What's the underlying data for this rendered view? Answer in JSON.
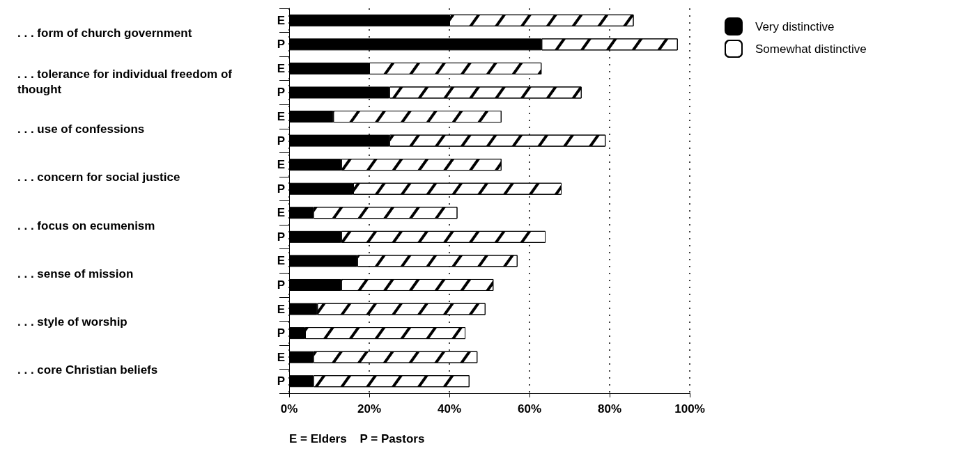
{
  "chart_data": {
    "type": "bar",
    "orientation": "horizontal",
    "stacked": true,
    "categories": [
      "E",
      "P",
      "E",
      "P",
      "E",
      "P",
      "E",
      "P",
      "E",
      "P",
      "E",
      "P",
      "E",
      "P",
      "E",
      "P"
    ],
    "series": [
      {
        "name": "Very distinctive",
        "color": "#000000",
        "values": [
          40,
          63,
          20,
          25,
          11,
          25,
          13,
          16,
          6,
          13,
          17,
          13,
          7,
          4,
          6,
          6
        ]
      },
      {
        "name": "Somewhat distinctive",
        "color": "#ffffff",
        "values": [
          46,
          34,
          43,
          48,
          42,
          54,
          40,
          52,
          36,
          51,
          40,
          38,
          42,
          40,
          41,
          39
        ]
      }
    ],
    "xlim": [
      0,
      100
    ],
    "xticks": [
      {
        "value": 0,
        "label": "0%"
      },
      {
        "value": 20,
        "label": "20%"
      },
      {
        "value": 40,
        "label": "40%"
      },
      {
        "value": 60,
        "label": "60%"
      },
      {
        "value": 80,
        "label": "80%"
      },
      {
        "value": 100,
        "label": "100%"
      }
    ],
    "grid": "x",
    "legend": "top right",
    "annotations": [
      ". . . form of church government",
      ". . . tolerance for individual freedom of thought",
      ". . . use of confessions",
      ". . . concern for social justice",
      ". . . focus on ecumenism",
      ". . . sense of mission",
      ". . . style of worship",
      ". . . core Christian beliefs",
      "E = Elders    P = Pastors"
    ]
  }
}
